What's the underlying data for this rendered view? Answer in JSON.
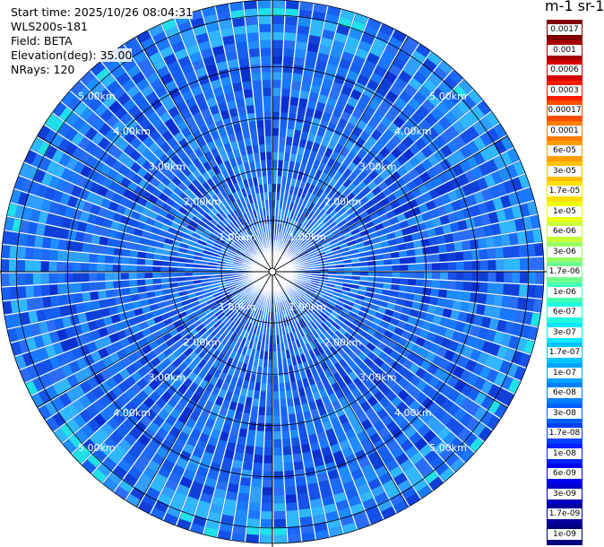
{
  "header": {
    "start_time": "Start time: 2025/10/26 08:04:31",
    "instrument": "WLS200s-181",
    "field": "Field: BETA",
    "elevation": "Elevation(deg): 35.00",
    "nrays": "NRays: 120"
  },
  "colorbar": {
    "unit_label": "m-1 sr-1",
    "ticks": [
      "0.0017",
      "0.001",
      "0.0006",
      "0.0003",
      "0.00017",
      "0.0001",
      "6e-05",
      "3e-05",
      "1.7e-05",
      "1e-05",
      "6e-06",
      "3e-06",
      "1.7e-06",
      "1e-06",
      "6e-07",
      "3e-07",
      "1.7e-07",
      "1e-07",
      "6e-08",
      "3e-08",
      "1.7e-08",
      "1e-08",
      "6e-09",
      "3e-09",
      "1.7e-09",
      "1e-09"
    ],
    "colors": [
      "#800000",
      "#a80000",
      "#d40000",
      "#ff1a00",
      "#ff4d00",
      "#ff7a00",
      "#ff9e00",
      "#ffbf00",
      "#ffe000",
      "#f0ff10",
      "#c8ff38",
      "#98ff66",
      "#70ff8e",
      "#48ffb6",
      "#20ffdd",
      "#00e8ff",
      "#00c4ff",
      "#00a2ff",
      "#0080ff",
      "#0060ff",
      "#0040ff",
      "#0020ff",
      "#0000f0",
      "#0000c8",
      "#0000a0",
      "#000080"
    ]
  },
  "chart_data": {
    "type": "heatmap",
    "projection": "polar-ppi",
    "field": "BETA",
    "elevation_deg": 35.0,
    "nrays": 120,
    "range_rings_km": [
      1,
      2,
      3,
      4,
      5
    ],
    "ring_labels": [
      "1.00km",
      "2.00km",
      "3.00km",
      "4.00km",
      "5.00km"
    ],
    "max_range_km": 5.3,
    "dominant_values": [
      "1e-08",
      "3e-08",
      "6e-08"
    ],
    "colormap": "jet",
    "scale": "log"
  }
}
